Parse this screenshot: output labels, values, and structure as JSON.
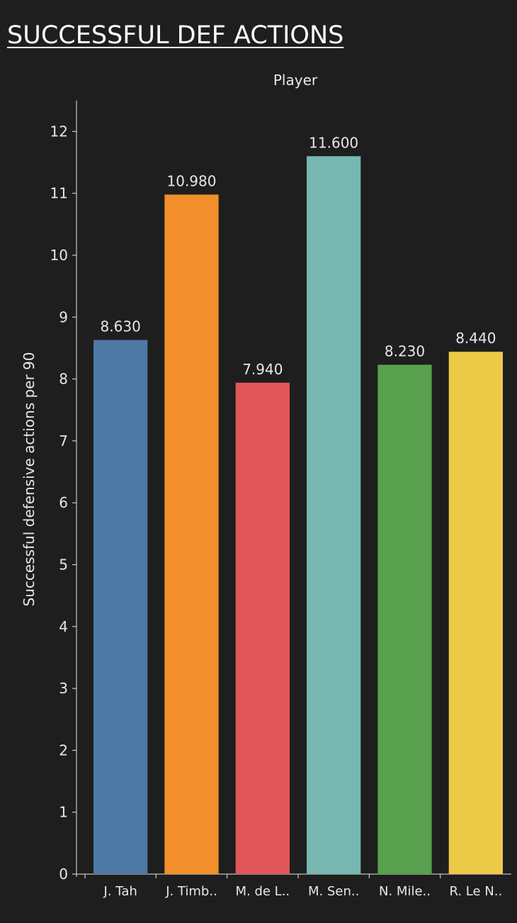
{
  "title": "SUCCESSFUL DEF ACTIONS",
  "colors": {
    "background": "#1e1e1e",
    "axis": "#e8e8e8",
    "label": "#e8e8e8"
  },
  "chart_data": {
    "type": "bar",
    "title": "SUCCESSFUL DEF ACTIONS",
    "xlabel": "Player",
    "ylabel": "Successful defensive actions per 90",
    "categories": [
      "J. Tah",
      "J. Timb..",
      "M. de L..",
      "M. Sen..",
      "N. Mile..",
      "R. Le N.."
    ],
    "values": [
      8.63,
      10.98,
      7.94,
      11.6,
      8.23,
      8.44
    ],
    "value_labels": [
      "8.630",
      "10.980",
      "7.940",
      "11.600",
      "8.230",
      "8.440"
    ],
    "bar_colors": [
      "#4e79a7",
      "#f28e2b",
      "#e15759",
      "#76b7b2",
      "#59a14f",
      "#edc948"
    ],
    "ylim": [
      0,
      12.5
    ],
    "yticks": [
      0,
      1,
      2,
      3,
      4,
      5,
      6,
      7,
      8,
      9,
      10,
      11,
      12
    ],
    "grid": false,
    "legend": "none"
  }
}
